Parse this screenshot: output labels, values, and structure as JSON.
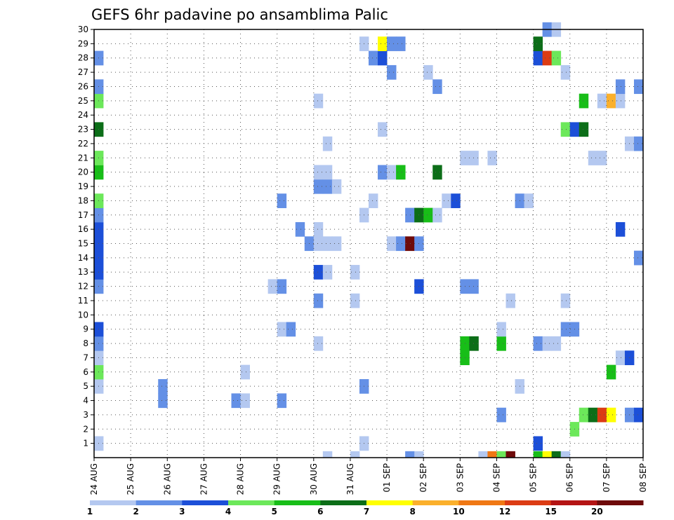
{
  "chart_data": {
    "type": "heatmap",
    "title": "GEFS 6hr padavine po ansamblima Palic",
    "x_tick_labels": [
      "24 AUG",
      "25 AUG",
      "26 AUG",
      "27 AUG",
      "28 AUG",
      "29 AUG",
      "30 AUG",
      "31 AUG",
      "01 SEP",
      "02 SEP",
      "03 SEP",
      "04 SEP",
      "05 SEP",
      "06 SEP",
      "07 SEP",
      "08 SEP"
    ],
    "y_tick_labels": [
      "1",
      "2",
      "3",
      "4",
      "5",
      "6",
      "7",
      "8",
      "9",
      "10",
      "11",
      "12",
      "13",
      "14",
      "15",
      "16",
      "17",
      "18",
      "19",
      "20",
      "21",
      "22",
      "23",
      "24",
      "25",
      "26",
      "27",
      "28",
      "29",
      "30"
    ],
    "xlim": [
      0,
      15
    ],
    "ylim": [
      0,
      30
    ],
    "members": 30,
    "grid": "dotted",
    "color_bins": [
      {
        "label": "1",
        "color": "#b4c8f0"
      },
      {
        "label": "2",
        "color": "#6490e6"
      },
      {
        "label": "3",
        "color": "#1c4fd8"
      },
      {
        "label": "4",
        "color": "#6ce85a"
      },
      {
        "label": "5",
        "color": "#18be18"
      },
      {
        "label": "6",
        "color": "#0c6e18"
      },
      {
        "label": "7",
        "color": "#ffff00"
      },
      {
        "label": "8",
        "color": "#fbb02c"
      },
      {
        "label": "10",
        "color": "#f07814"
      },
      {
        "label": "12",
        "color": "#dc3c14"
      },
      {
        "label": "15",
        "color": "#b41414"
      },
      {
        "label": "20",
        "color": "#6e0a0a"
      }
    ],
    "colorbar_labels": [
      "1",
      "2",
      "3",
      "4",
      "5",
      "6",
      "7",
      "8",
      "10",
      "12",
      "15",
      "20"
    ],
    "cells": [
      {
        "day": 0.0,
        "member": 1,
        "bin": 0
      },
      {
        "day": 0.0,
        "member": 5,
        "bin": 0
      },
      {
        "day": 0.0,
        "member": 6,
        "bin": 3
      },
      {
        "day": 0.0,
        "member": 7,
        "bin": 0
      },
      {
        "day": 0.0,
        "member": 8,
        "bin": 1
      },
      {
        "day": 0.0,
        "member": 9,
        "bin": 2
      },
      {
        "day": 0.0,
        "member": 12,
        "bin": 1
      },
      {
        "day": 0.0,
        "member": 13,
        "bin": 2
      },
      {
        "day": 0.0,
        "member": 14,
        "bin": 2
      },
      {
        "day": 0.0,
        "member": 15,
        "bin": 2
      },
      {
        "day": 0.0,
        "member": 16,
        "bin": 2
      },
      {
        "day": 0.0,
        "member": 17,
        "bin": 1
      },
      {
        "day": 0.0,
        "member": 18,
        "bin": 3
      },
      {
        "day": 0.0,
        "member": 20,
        "bin": 4
      },
      {
        "day": 0.0,
        "member": 21,
        "bin": 3
      },
      {
        "day": 0.0,
        "member": 23,
        "bin": 5
      },
      {
        "day": 0.0,
        "member": 25,
        "bin": 3
      },
      {
        "day": 0.0,
        "member": 26,
        "bin": 1
      },
      {
        "day": 0.0,
        "member": 28,
        "bin": 1
      },
      {
        "day": 1.75,
        "member": 4,
        "bin": 1
      },
      {
        "day": 1.75,
        "member": 5,
        "bin": 1
      },
      {
        "day": 3.75,
        "member": 4,
        "bin": 1
      },
      {
        "day": 4.0,
        "member": 4,
        "bin": 0
      },
      {
        "day": 4.0,
        "member": 6,
        "bin": 0
      },
      {
        "day": 4.75,
        "member": 12,
        "bin": 0
      },
      {
        "day": 5.0,
        "member": 12,
        "bin": 1
      },
      {
        "day": 5.0,
        "member": 9,
        "bin": 0
      },
      {
        "day": 5.25,
        "member": 9,
        "bin": 1
      },
      {
        "day": 5.0,
        "member": 4,
        "bin": 1
      },
      {
        "day": 5.0,
        "member": 18,
        "bin": 1
      },
      {
        "day": 5.5,
        "member": 16,
        "bin": 1
      },
      {
        "day": 5.75,
        "member": 15,
        "bin": 1
      },
      {
        "day": 6.0,
        "member": 8,
        "bin": 0
      },
      {
        "day": 6.0,
        "member": 11,
        "bin": 1
      },
      {
        "day": 6.0,
        "member": 13,
        "bin": 2
      },
      {
        "day": 6.0,
        "member": 15,
        "bin": 0
      },
      {
        "day": 6.0,
        "member": 16,
        "bin": 0
      },
      {
        "day": 6.0,
        "member": 19,
        "bin": 1
      },
      {
        "day": 6.0,
        "member": 20,
        "bin": 0
      },
      {
        "day": 6.0,
        "member": 25,
        "bin": 0
      },
      {
        "day": 6.25,
        "member": 13,
        "bin": 0
      },
      {
        "day": 6.25,
        "member": 15,
        "bin": 0
      },
      {
        "day": 6.25,
        "member": 19,
        "bin": 1
      },
      {
        "day": 6.25,
        "member": 20,
        "bin": 0
      },
      {
        "day": 6.25,
        "member": 22,
        "bin": 0
      },
      {
        "day": 6.25,
        "member": 0,
        "bin": 0
      },
      {
        "day": 6.5,
        "member": 15,
        "bin": 0
      },
      {
        "day": 6.5,
        "member": 19,
        "bin": 0
      },
      {
        "day": 7.0,
        "member": 11,
        "bin": 0
      },
      {
        "day": 7.0,
        "member": 13,
        "bin": 0
      },
      {
        "day": 7.0,
        "member": 0,
        "bin": 0
      },
      {
        "day": 7.25,
        "member": 17,
        "bin": 0
      },
      {
        "day": 7.25,
        "member": 5,
        "bin": 1
      },
      {
        "day": 7.25,
        "member": 1,
        "bin": 0
      },
      {
        "day": 7.25,
        "member": 29,
        "bin": 0
      },
      {
        "day": 7.5,
        "member": 28,
        "bin": 1
      },
      {
        "day": 7.75,
        "member": 28,
        "bin": 2
      },
      {
        "day": 7.5,
        "member": 18,
        "bin": 0
      },
      {
        "day": 7.75,
        "member": 29,
        "bin": 6
      },
      {
        "day": 7.75,
        "member": 23,
        "bin": 0
      },
      {
        "day": 7.75,
        "member": 20,
        "bin": 1
      },
      {
        "day": 8.0,
        "member": 29,
        "bin": 1
      },
      {
        "day": 8.25,
        "member": 29,
        "bin": 1
      },
      {
        "day": 8.0,
        "member": 27,
        "bin": 1
      },
      {
        "day": 8.0,
        "member": 20,
        "bin": 0
      },
      {
        "day": 8.25,
        "member": 20,
        "bin": 4
      },
      {
        "day": 8.0,
        "member": 15,
        "bin": 0
      },
      {
        "day": 8.25,
        "member": 15,
        "bin": 1
      },
      {
        "day": 8.5,
        "member": 15,
        "bin": 11
      },
      {
        "day": 8.75,
        "member": 15,
        "bin": 1
      },
      {
        "day": 8.5,
        "member": 17,
        "bin": 1
      },
      {
        "day": 8.75,
        "member": 17,
        "bin": 5
      },
      {
        "day": 9.0,
        "member": 17,
        "bin": 4
      },
      {
        "day": 9.25,
        "member": 17,
        "bin": 0
      },
      {
        "day": 8.5,
        "member": 0,
        "bin": 1
      },
      {
        "day": 8.75,
        "member": 0,
        "bin": 0
      },
      {
        "day": 8.75,
        "member": 12,
        "bin": 2
      },
      {
        "day": 9.0,
        "member": 27,
        "bin": 0
      },
      {
        "day": 9.25,
        "member": 26,
        "bin": 1
      },
      {
        "day": 9.25,
        "member": 20,
        "bin": 5
      },
      {
        "day": 9.5,
        "member": 18,
        "bin": 0
      },
      {
        "day": 9.75,
        "member": 18,
        "bin": 2
      },
      {
        "day": 10.0,
        "member": 8,
        "bin": 4
      },
      {
        "day": 10.0,
        "member": 7,
        "bin": 4
      },
      {
        "day": 10.25,
        "member": 8,
        "bin": 5
      },
      {
        "day": 10.0,
        "member": 12,
        "bin": 1
      },
      {
        "day": 10.25,
        "member": 12,
        "bin": 1
      },
      {
        "day": 10.0,
        "member": 21,
        "bin": 0
      },
      {
        "day": 10.25,
        "member": 21,
        "bin": 0
      },
      {
        "day": 10.5,
        "member": 0,
        "bin": 0
      },
      {
        "day": 10.75,
        "member": 0,
        "bin": 8
      },
      {
        "day": 10.75,
        "member": 21,
        "bin": 0
      },
      {
        "day": 11.0,
        "member": 3,
        "bin": 1
      },
      {
        "day": 11.0,
        "member": 8,
        "bin": 4
      },
      {
        "day": 11.0,
        "member": 9,
        "bin": 0
      },
      {
        "day": 11.0,
        "member": 0,
        "bin": 3
      },
      {
        "day": 11.25,
        "member": 0,
        "bin": 11
      },
      {
        "day": 11.25,
        "member": 11,
        "bin": 0
      },
      {
        "day": 11.5,
        "member": 5,
        "bin": 0
      },
      {
        "day": 11.5,
        "member": 18,
        "bin": 1
      },
      {
        "day": 11.75,
        "member": 18,
        "bin": 0
      },
      {
        "day": 12.0,
        "member": 1,
        "bin": 2
      },
      {
        "day": 12.0,
        "member": 0,
        "bin": 4
      },
      {
        "day": 12.25,
        "member": 0,
        "bin": 6
      },
      {
        "day": 12.5,
        "member": 0,
        "bin": 5
      },
      {
        "day": 12.75,
        "member": 0,
        "bin": 0
      },
      {
        "day": 12.0,
        "member": 8,
        "bin": 1
      },
      {
        "day": 12.25,
        "member": 8,
        "bin": 0
      },
      {
        "day": 12.5,
        "member": 8,
        "bin": 0
      },
      {
        "day": 12.0,
        "member": 28,
        "bin": 2
      },
      {
        "day": 12.25,
        "member": 28,
        "bin": 9
      },
      {
        "day": 12.5,
        "member": 28,
        "bin": 3
      },
      {
        "day": 12.0,
        "member": 29,
        "bin": 5
      },
      {
        "day": 12.25,
        "member": 30,
        "bin": 1
      },
      {
        "day": 12.5,
        "member": 30,
        "bin": 0
      },
      {
        "day": 12.75,
        "member": 11,
        "bin": 0
      },
      {
        "day": 12.75,
        "member": 9,
        "bin": 1
      },
      {
        "day": 13.0,
        "member": 9,
        "bin": 1
      },
      {
        "day": 12.75,
        "member": 23,
        "bin": 3
      },
      {
        "day": 13.0,
        "member": 23,
        "bin": 2
      },
      {
        "day": 13.25,
        "member": 23,
        "bin": 5
      },
      {
        "day": 12.75,
        "member": 27,
        "bin": 0
      },
      {
        "day": 13.0,
        "member": 2,
        "bin": 3
      },
      {
        "day": 13.25,
        "member": 25,
        "bin": 4
      },
      {
        "day": 13.25,
        "member": 3,
        "bin": 3
      },
      {
        "day": 13.5,
        "member": 3,
        "bin": 5
      },
      {
        "day": 13.75,
        "member": 3,
        "bin": 9
      },
      {
        "day": 14.0,
        "member": 3,
        "bin": 6
      },
      {
        "day": 13.5,
        "member": 21,
        "bin": 0
      },
      {
        "day": 13.75,
        "member": 21,
        "bin": 0
      },
      {
        "day": 13.75,
        "member": 25,
        "bin": 0
      },
      {
        "day": 14.0,
        "member": 25,
        "bin": 7
      },
      {
        "day": 14.25,
        "member": 25,
        "bin": 0
      },
      {
        "day": 14.25,
        "member": 26,
        "bin": 1
      },
      {
        "day": 14.0,
        "member": 6,
        "bin": 4
      },
      {
        "day": 14.25,
        "member": 7,
        "bin": 0
      },
      {
        "day": 14.5,
        "member": 7,
        "bin": 2
      },
      {
        "day": 14.25,
        "member": 16,
        "bin": 2
      },
      {
        "day": 14.5,
        "member": 3,
        "bin": 1
      },
      {
        "day": 14.75,
        "member": 3,
        "bin": 2
      },
      {
        "day": 14.5,
        "member": 22,
        "bin": 0
      },
      {
        "day": 14.75,
        "member": 22,
        "bin": 1
      },
      {
        "day": 14.75,
        "member": 26,
        "bin": 1
      },
      {
        "day": 14.75,
        "member": 14,
        "bin": 1
      }
    ]
  }
}
